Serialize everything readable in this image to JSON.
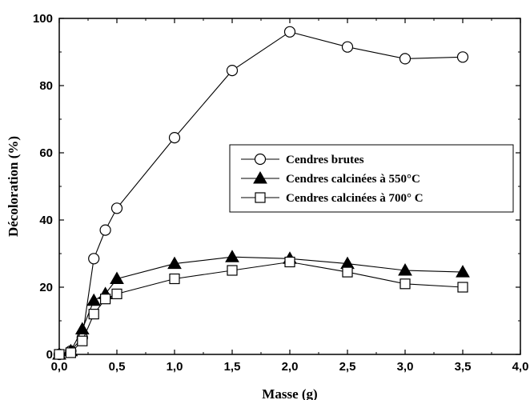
{
  "chart_data": {
    "type": "line",
    "title": "",
    "xlabel": "Masse (g)",
    "ylabel": "Décoloration (%)",
    "xlim": [
      0.0,
      4.0
    ],
    "ylim": [
      0,
      100
    ],
    "x_ticks": [
      "0,0",
      "0,5",
      "1,0",
      "1,5",
      "2,0",
      "2,5",
      "3,0",
      "3,5",
      "4,0"
    ],
    "y_ticks": [
      "0",
      "20",
      "40",
      "60",
      "80",
      "100"
    ],
    "grid": false,
    "legend_position": "center-right",
    "series": [
      {
        "name": "Cendres brutes",
        "marker": "circle-open",
        "x": [
          0.0,
          0.1,
          0.2,
          0.3,
          0.4,
          0.5,
          1.0,
          1.5,
          2.0,
          2.5,
          3.0,
          3.5
        ],
        "y": [
          0,
          1,
          5,
          28.5,
          37,
          43.5,
          64.5,
          84.5,
          96,
          91.5,
          88,
          88.5
        ]
      },
      {
        "name": "Cendres calcinées à 550°C",
        "marker": "triangle-filled",
        "x": [
          0.0,
          0.1,
          0.2,
          0.3,
          0.4,
          0.5,
          1.0,
          1.5,
          2.0,
          2.5,
          3.0,
          3.5
        ],
        "y": [
          0,
          1,
          7.5,
          16,
          18,
          22.5,
          27,
          29,
          28.5,
          27,
          25,
          24.5
        ]
      },
      {
        "name": "Cendres calcinées à 700° C",
        "marker": "square-open",
        "x": [
          0.0,
          0.1,
          0.2,
          0.3,
          0.4,
          0.5,
          1.0,
          1.5,
          2.0,
          2.5,
          3.0,
          3.5
        ],
        "y": [
          0,
          0.5,
          4,
          12,
          16.5,
          18,
          22.5,
          25,
          27.5,
          24.5,
          21,
          20
        ]
      }
    ]
  }
}
